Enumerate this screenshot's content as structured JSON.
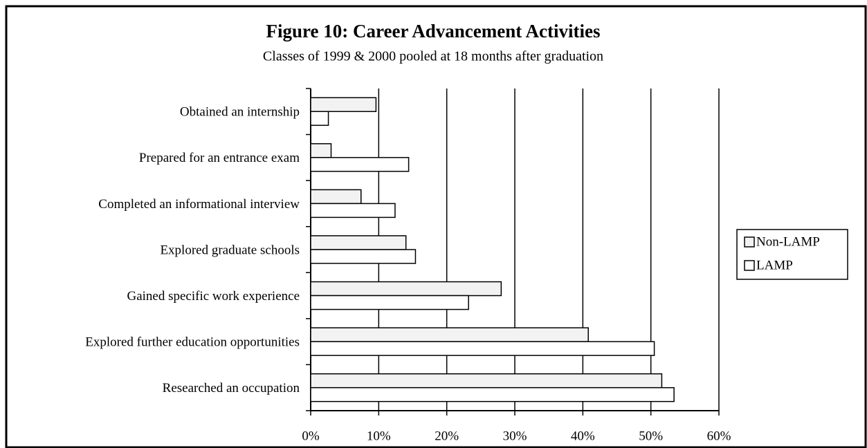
{
  "chart_data": {
    "type": "barh",
    "title": "Figure 10: Career Advancement Activities",
    "subtitle": "Classes of 1999 & 2000 pooled at 18 months after graduation",
    "categories": [
      "Obtained an internship",
      "Prepared for an entrance exam",
      "Completed an informational interview",
      "Explored graduate schools",
      "Gained specific work experience",
      "Explored further education opportunities",
      "Researched an occupation"
    ],
    "series": [
      {
        "name": "Non-LAMP",
        "color": "#f2f2f2",
        "values": [
          9.6,
          3.0,
          7.4,
          14.0,
          28.0,
          40.8,
          51.6
        ]
      },
      {
        "name": "LAMP",
        "color": "#ffffff",
        "values": [
          2.6,
          14.4,
          12.4,
          15.4,
          23.2,
          50.5,
          53.4
        ]
      }
    ],
    "xlim": [
      0,
      60
    ],
    "xticks": [
      {
        "value": 0,
        "label": "0%"
      },
      {
        "value": 10,
        "label": "10%"
      },
      {
        "value": 20,
        "label": "20%"
      },
      {
        "value": 30,
        "label": "30%"
      },
      {
        "value": 40,
        "label": "40%"
      },
      {
        "value": 50,
        "label": "50%"
      },
      {
        "value": 60,
        "label": "60%"
      }
    ],
    "grid": true,
    "legend": "right"
  }
}
